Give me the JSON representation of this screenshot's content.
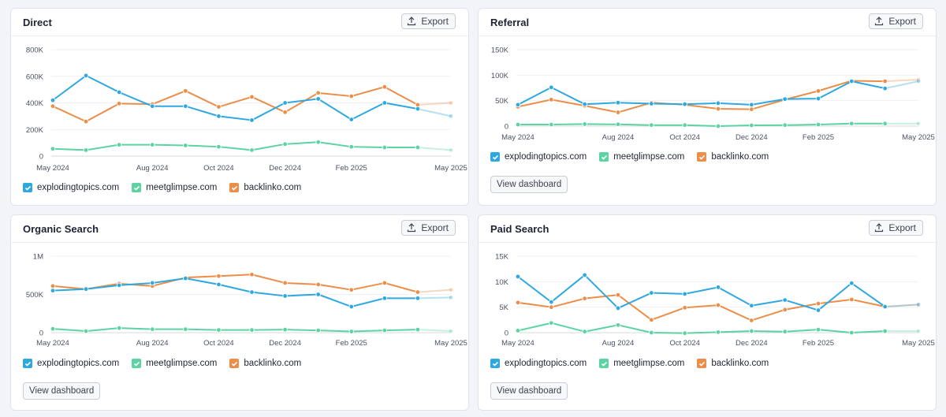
{
  "colors": {
    "explodingtopics": "#2ea8e0",
    "meetglimpse": "#5bd3a2",
    "backlinko": "#ec8d48"
  },
  "legend": [
    "explodingtopics.com",
    "meetglimpse.com",
    "backlinko.com"
  ],
  "export_label": "Export",
  "view_dashboard_label": "View dashboard",
  "chart_data": [
    {
      "type": "line",
      "title": "Direct",
      "x": [
        "May 2024",
        "Jun 2024",
        "Jul 2024",
        "Aug 2024",
        "Sep 2024",
        "Oct 2024",
        "Nov 2024",
        "Dec 2024",
        "Jan 2025",
        "Feb 2025",
        "Mar 2025",
        "Apr 2025",
        "May 2025"
      ],
      "x_tick_labels": [
        "May 2024",
        "Aug 2024",
        "Oct 2024",
        "Dec 2024",
        "Feb 2025",
        "May 2025"
      ],
      "y_tick_labels": [
        "0",
        "200K",
        "400K",
        "600K",
        "800K"
      ],
      "ylim": [
        0,
        800000
      ],
      "grid": true,
      "legend_position": "bottom-left",
      "series": [
        {
          "name": "explodingtopics.com",
          "values": [
            420000,
            605000,
            480000,
            375000,
            375000,
            300000,
            270000,
            400000,
            430000,
            275000,
            400000,
            355000,
            300000
          ]
        },
        {
          "name": "meetglimpse.com",
          "values": [
            55000,
            45000,
            85000,
            85000,
            80000,
            70000,
            45000,
            90000,
            105000,
            70000,
            65000,
            65000,
            45000
          ]
        },
        {
          "name": "backlinko.com",
          "values": [
            375000,
            260000,
            395000,
            390000,
            490000,
            370000,
            445000,
            330000,
            475000,
            450000,
            520000,
            385000,
            400000
          ]
        }
      ]
    },
    {
      "type": "line",
      "title": "Referral",
      "x": [
        "May 2024",
        "Jun 2024",
        "Jul 2024",
        "Aug 2024",
        "Sep 2024",
        "Oct 2024",
        "Nov 2024",
        "Dec 2024",
        "Jan 2025",
        "Feb 2025",
        "Mar 2025",
        "Apr 2025",
        "May 2025"
      ],
      "x_tick_labels": [
        "May 2024",
        "Aug 2024",
        "Oct 2024",
        "Dec 2024",
        "Feb 2025",
        "May 2025"
      ],
      "y_tick_labels": [
        "0",
        "50K",
        "100K",
        "150K"
      ],
      "ylim": [
        0,
        150000
      ],
      "grid": true,
      "legend_position": "bottom-left",
      "series": [
        {
          "name": "explodingtopics.com",
          "values": [
            42000,
            76000,
            43000,
            46000,
            44000,
            43000,
            45000,
            42000,
            53000,
            54000,
            88000,
            74000,
            88000
          ]
        },
        {
          "name": "meetglimpse.com",
          "values": [
            3000,
            3000,
            4000,
            3500,
            2000,
            2000,
            0,
            1500,
            2000,
            3000,
            5000,
            5000,
            5000
          ]
        },
        {
          "name": "backlinko.com",
          "values": [
            38000,
            52000,
            40000,
            27000,
            46000,
            42000,
            34000,
            33000,
            52000,
            69000,
            89000,
            88000,
            91000
          ]
        }
      ]
    },
    {
      "type": "line",
      "title": "Organic Search",
      "x": [
        "May 2024",
        "Jun 2024",
        "Jul 2024",
        "Aug 2024",
        "Sep 2024",
        "Oct 2024",
        "Nov 2024",
        "Dec 2024",
        "Jan 2025",
        "Feb 2025",
        "Mar 2025",
        "Apr 2025",
        "May 2025"
      ],
      "x_tick_labels": [
        "May 2024",
        "Aug 2024",
        "Oct 2024",
        "Dec 2024",
        "Feb 2025",
        "May 2025"
      ],
      "y_tick_labels": [
        "0",
        "500K",
        "1M"
      ],
      "ylim": [
        0,
        1000000
      ],
      "grid": true,
      "legend_position": "bottom-left",
      "series": [
        {
          "name": "explodingtopics.com",
          "values": [
            550000,
            570000,
            620000,
            650000,
            710000,
            630000,
            530000,
            480000,
            500000,
            340000,
            450000,
            450000,
            460000
          ]
        },
        {
          "name": "meetglimpse.com",
          "values": [
            50000,
            20000,
            60000,
            45000,
            45000,
            35000,
            35000,
            40000,
            30000,
            15000,
            30000,
            40000,
            20000
          ]
        },
        {
          "name": "backlinko.com",
          "values": [
            610000,
            570000,
            640000,
            610000,
            720000,
            740000,
            760000,
            650000,
            630000,
            560000,
            650000,
            530000,
            560000
          ]
        }
      ]
    },
    {
      "type": "line",
      "title": "Paid Search",
      "x": [
        "May 2024",
        "Jun 2024",
        "Jul 2024",
        "Aug 2024",
        "Sep 2024",
        "Oct 2024",
        "Nov 2024",
        "Dec 2024",
        "Jan 2025",
        "Feb 2025",
        "Mar 2025",
        "Apr 2025",
        "May 2025"
      ],
      "x_tick_labels": [
        "May 2024",
        "Aug 2024",
        "Oct 2024",
        "Dec 2024",
        "Feb 2025",
        "May 2025"
      ],
      "y_tick_labels": [
        "0",
        "5K",
        "10K",
        "15K"
      ],
      "ylim": [
        0,
        15000
      ],
      "grid": true,
      "legend_position": "bottom-left",
      "series": [
        {
          "name": "explodingtopics.com",
          "values": [
            11000,
            6000,
            11300,
            4800,
            7800,
            7600,
            8900,
            5300,
            6400,
            4400,
            9700,
            5100,
            5500
          ]
        },
        {
          "name": "meetglimpse.com",
          "values": [
            400,
            1900,
            200,
            1500,
            0,
            -100,
            100,
            300,
            200,
            600,
            0,
            300,
            300
          ]
        },
        {
          "name": "backlinko.com",
          "values": [
            5900,
            5000,
            6700,
            7400,
            2500,
            4900,
            5400,
            2400,
            4500,
            5700,
            6500,
            5100,
            5500
          ]
        }
      ]
    }
  ]
}
